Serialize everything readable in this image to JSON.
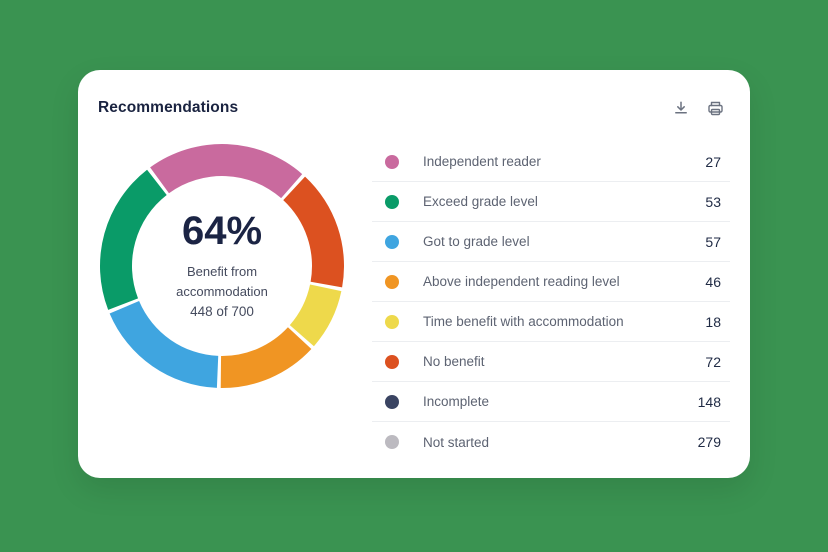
{
  "page": {
    "background_color": "#3a9351",
    "card_color": "#ffffff"
  },
  "card": {
    "title": "Recommendations",
    "actions": [
      {
        "name": "download",
        "icon": "download-icon"
      },
      {
        "name": "print",
        "icon": "printer-icon"
      }
    ],
    "icon_color": "#6b7280"
  },
  "chart_data": {
    "type": "pie",
    "title": "Recommendations",
    "legend_position": "right",
    "center": {
      "percent": "64%",
      "label1": "Benefit from",
      "label2": "accommodation",
      "fraction": "448 of 700"
    },
    "total": 700,
    "legend": [
      {
        "label": "Independent reader",
        "value": 27,
        "color": "#c96a9e"
      },
      {
        "label": "Exceed grade level",
        "value": 53,
        "color": "#0a9b68"
      },
      {
        "label": "Got to grade level",
        "value": 57,
        "color": "#3fa5e0"
      },
      {
        "label": "Above independent reading level",
        "value": 46,
        "color": "#f09523"
      },
      {
        "label": "Time benefit with accommodation",
        "value": 18,
        "color": "#eed94b"
      },
      {
        "label": "No benefit",
        "value": 72,
        "color": "#dc5120"
      },
      {
        "label": "Incomplete",
        "value": 148,
        "color": "#3a4462"
      },
      {
        "label": "Not started",
        "value": 279,
        "color": "#bcbac0"
      }
    ],
    "donut_segments": [
      {
        "name": "Independent reader",
        "color": "#c96a9e",
        "start": -37,
        "end": 42
      },
      {
        "name": "No benefit",
        "color": "#dc5120",
        "start": 42,
        "end": 101
      },
      {
        "name": "Time benefit with accommodation",
        "color": "#eed94b",
        "start": 101,
        "end": 132
      },
      {
        "name": "Above independent reading level",
        "color": "#f09523",
        "start": 132,
        "end": 181.5
      },
      {
        "name": "Got to grade level",
        "color": "#3fa5e0",
        "start": 181.5,
        "end": 248
      },
      {
        "name": "Exceed grade level",
        "color": "#0a9b68",
        "start": 248,
        "end": 323
      }
    ],
    "donut_geometry": {
      "outer_radius": 122,
      "inner_radius": 90,
      "gap_degrees": 1.8
    }
  }
}
